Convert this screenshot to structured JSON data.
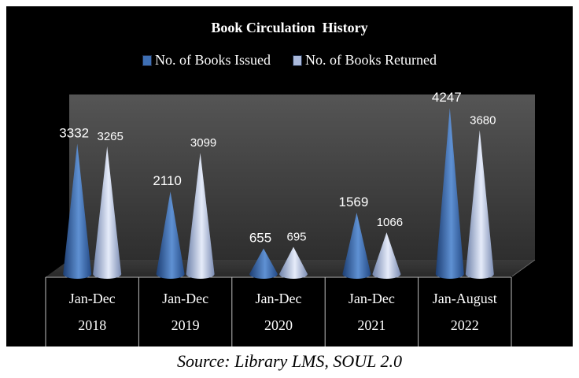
{
  "chart_data": {
    "type": "bar",
    "shape": "cone",
    "title": "Book Circulation  History",
    "categories": [
      {
        "line1": "Jan-Dec",
        "line2": "2018"
      },
      {
        "line1": "Jan-Dec",
        "line2": "2019"
      },
      {
        "line1": "Jan-Dec",
        "line2": "2020"
      },
      {
        "line1": "Jan-Dec",
        "line2": "2021"
      },
      {
        "line1": "Jan-August",
        "line2": "2022"
      }
    ],
    "series": [
      {
        "name": "No. of Books Issued",
        "color": "#3e6fb4",
        "values": [
          3332,
          2110,
          655,
          1569,
          4247
        ]
      },
      {
        "name": "No. of Books Returned",
        "color": "#aab9db",
        "values": [
          3265,
          3099,
          695,
          1066,
          3680
        ]
      }
    ],
    "ylim": [
      0,
      4500
    ],
    "legend_position": "top",
    "data_labels": true,
    "background": "#000000"
  },
  "caption": "Source: Library LMS, SOUL 2.0"
}
